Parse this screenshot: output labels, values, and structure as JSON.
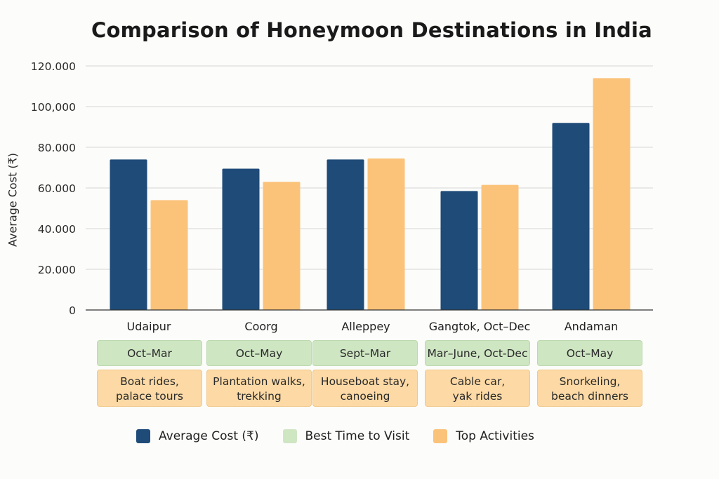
{
  "colors": {
    "cost": "#1f4b78",
    "best_time": "#cfe6c3",
    "activities": "#fbc37a",
    "grid": "#d6d6d6",
    "axis": "#333333"
  },
  "chart_data": {
    "type": "bar",
    "title": "Comparison of Honeymoon Destinations in India",
    "ylabel": "Average Cost (₹)",
    "xlabel": "",
    "ylim": [
      0,
      120000
    ],
    "y_ticks": [
      0,
      20000,
      40000,
      60000,
      80000,
      100000,
      120000
    ],
    "y_tick_labels": [
      "0",
      "20.000",
      "40.000",
      "60.000",
      "80.000",
      "100,000",
      "120.000"
    ],
    "grid": true,
    "legend_placement": "bottom",
    "categories": [
      "Udaipur",
      "Coorg",
      "Alleppey",
      "Gangtok, Oct–Dec",
      "Andaman"
    ],
    "series": [
      {
        "name": "Average Cost (₹)",
        "values": [
          74000,
          69500,
          74000,
          58500,
          92000
        ]
      },
      {
        "name": "Top Activities",
        "values": [
          54000,
          63000,
          74500,
          61500,
          114000
        ]
      }
    ],
    "best_time": [
      "Oct–Mar",
      "Oct–May",
      "Sept–Mar",
      "Mar–June, Oct-Dec",
      "Oct–May"
    ],
    "activities": [
      [
        "Boat rides,",
        "palace tours"
      ],
      [
        "Plantation walks,",
        "trekking"
      ],
      [
        "Houseboat stay,",
        "canoeing"
      ],
      [
        "Cable car,",
        "yak rides"
      ],
      [
        "Snorkeling,",
        "beach dinners"
      ]
    ],
    "legend": [
      "Average Cost (₹)",
      "Best Time to Visit",
      "Top Activities"
    ]
  }
}
